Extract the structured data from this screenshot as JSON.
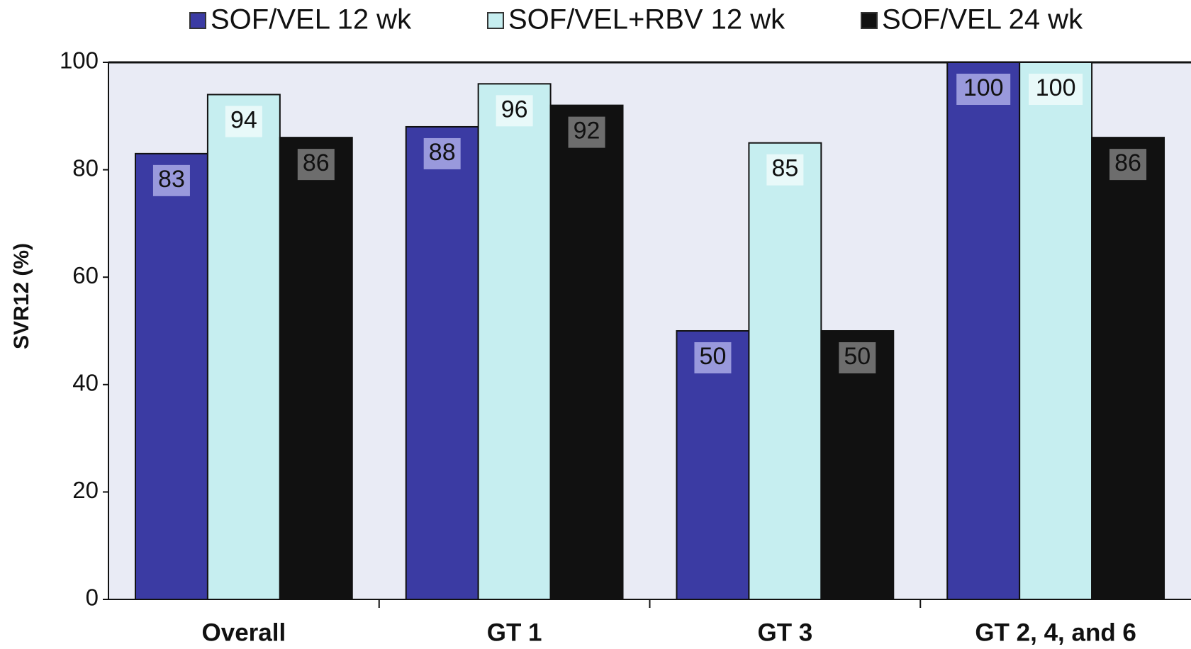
{
  "chart_data": {
    "type": "bar",
    "y_label": "SVR12 (%)",
    "categories": [
      "Overall",
      "GT 1",
      "GT 3",
      "GT 2, 4, and 6"
    ],
    "series": [
      {
        "name": "SOF/VEL 12 wk",
        "color": "#3b3ba3",
        "values": [
          83,
          88,
          50,
          100
        ]
      },
      {
        "name": "SOF/VEL+RBV 12 wk",
        "color": "#c6eef0",
        "values": [
          94,
          96,
          85,
          100
        ]
      },
      {
        "name": "SOF/VEL 24 wk",
        "color": "#111111",
        "values": [
          86,
          92,
          50,
          86
        ]
      }
    ],
    "ylim": [
      0,
      100
    ],
    "yticks": [
      0,
      20,
      40,
      60,
      80,
      100
    ],
    "grid": false
  }
}
